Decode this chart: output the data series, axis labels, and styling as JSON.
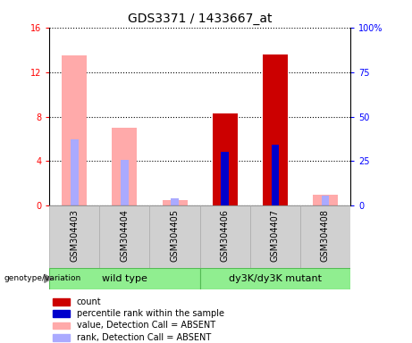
{
  "title": "GDS3371 / 1433667_at",
  "samples": [
    "GSM304403",
    "GSM304404",
    "GSM304405",
    "GSM304406",
    "GSM304407",
    "GSM304408"
  ],
  "absent_present": [
    true,
    true,
    true,
    false,
    false,
    true
  ],
  "value_bars": [
    13.5,
    7.0,
    0.5,
    8.3,
    13.6,
    1.0
  ],
  "rank_bars": [
    6.0,
    4.1,
    0.65,
    4.85,
    5.5,
    0.95
  ],
  "value_color_present": "#cc0000",
  "value_color_absent": "#ffaaaa",
  "rank_color_present": "#0000cc",
  "rank_color_absent": "#aaaaff",
  "ylim_left": [
    0,
    16
  ],
  "ylim_right": [
    0,
    100
  ],
  "yticks_left": [
    0,
    4,
    8,
    12,
    16
  ],
  "ytick_labels_left": [
    "0",
    "4",
    "8",
    "12",
    "16"
  ],
  "yticks_right": [
    0,
    25,
    50,
    75,
    100
  ],
  "ytick_labels_right": [
    "0",
    "25",
    "50",
    "75",
    "100%"
  ],
  "plot_bg": "#ffffff",
  "fig_bg": "#ffffff",
  "sample_box_color": "#d0d0d0",
  "sample_box_border": "#aaaaaa",
  "group_box_color": "#90ee90",
  "group_box_border": "#55bb55",
  "legend_items": [
    {
      "label": "count",
      "color": "#cc0000"
    },
    {
      "label": "percentile rank within the sample",
      "color": "#0000cc"
    },
    {
      "label": "value, Detection Call = ABSENT",
      "color": "#ffaaaa"
    },
    {
      "label": "rank, Detection Call = ABSENT",
      "color": "#aaaaff"
    }
  ],
  "genotype_label": "genotype/variation",
  "title_fontsize": 10,
  "tick_fontsize": 7,
  "label_fontsize": 7,
  "legend_fontsize": 7,
  "group_fontsize": 8
}
